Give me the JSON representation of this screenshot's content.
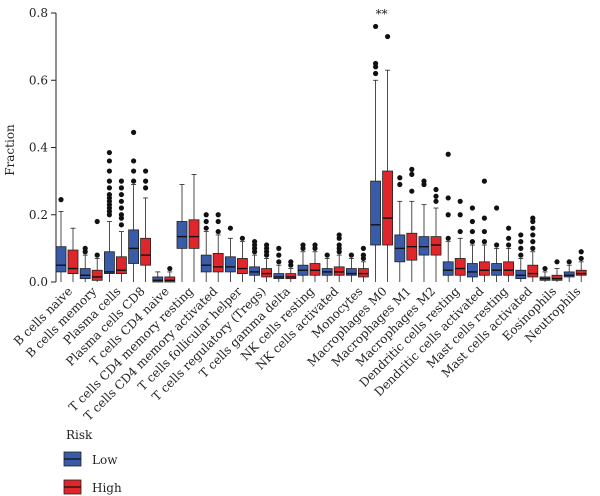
{
  "chart_data": {
    "type": "boxplot",
    "ylabel": "Fraction",
    "ylim": [
      0,
      0.8
    ],
    "yticks": [
      "0.0",
      "0.2",
      "0.4",
      "0.6",
      "0.8"
    ],
    "categories": [
      "B cells naive",
      "B cells memory",
      "Plasma cells",
      "Plasma cells CD8",
      "T cells CD4 naive",
      "T cells CD4 memory resting",
      "T cells CD4 memory activated",
      "T cells follicular helper",
      "T cells regulatory (Tregs)",
      "T cells gamma delta",
      "NK cells resting",
      "NK cells activated",
      "Monocytes",
      "Macrophages M0",
      "Macrophages M1",
      "Macrophages M2",
      "Dendritic cells resting",
      "Dendritic cells activated",
      "Mast cells resting",
      "Mast cells activated",
      "Eosinophils",
      "Neutrophils"
    ],
    "legend": {
      "title": "Risk",
      "position": "bottom-left"
    },
    "significance": [
      {
        "category": "Macrophages M0",
        "label": "**"
      }
    ],
    "series": [
      {
        "name": "Low",
        "color": "#3a5ba8",
        "boxes": [
          {
            "whislo": 0.0,
            "q1": 0.03,
            "med": 0.05,
            "q3": 0.105,
            "whishi": 0.21,
            "fliers": [
              0.245
            ]
          },
          {
            "whislo": 0.0,
            "q1": 0.01,
            "med": 0.02,
            "q3": 0.04,
            "whishi": 0.08,
            "fliers": [
              0.09,
              0.1
            ]
          },
          {
            "whislo": 0.0,
            "q1": 0.025,
            "med": 0.03,
            "q3": 0.09,
            "whishi": 0.18,
            "fliers": [
              0.2,
              0.21,
              0.22,
              0.23,
              0.24,
              0.25,
              0.26,
              0.28,
              0.3,
              0.33,
              0.36,
              0.385
            ]
          },
          {
            "whislo": 0.0,
            "q1": 0.055,
            "med": 0.1,
            "q3": 0.155,
            "whishi": 0.29,
            "fliers": [
              0.3,
              0.33,
              0.36,
              0.445
            ]
          },
          {
            "whislo": 0.0,
            "q1": 0.0,
            "med": 0.005,
            "q3": 0.015,
            "whishi": 0.03,
            "fliers": []
          },
          {
            "whislo": 0.0,
            "q1": 0.1,
            "med": 0.135,
            "q3": 0.18,
            "whishi": 0.29,
            "fliers": []
          },
          {
            "whislo": 0.0,
            "q1": 0.03,
            "med": 0.05,
            "q3": 0.08,
            "whishi": 0.15,
            "fliers": [
              0.16,
              0.18,
              0.2
            ]
          },
          {
            "whislo": 0.0,
            "q1": 0.03,
            "med": 0.045,
            "q3": 0.075,
            "whishi": 0.13,
            "fliers": [
              0.16
            ]
          },
          {
            "whislo": 0.0,
            "q1": 0.02,
            "med": 0.03,
            "q3": 0.045,
            "whishi": 0.08,
            "fliers": [
              0.09,
              0.1,
              0.11,
              0.12
            ]
          },
          {
            "whislo": 0.0,
            "q1": 0.01,
            "med": 0.015,
            "q3": 0.025,
            "whishi": 0.05,
            "fliers": [
              0.06,
              0.08,
              0.1
            ]
          },
          {
            "whislo": 0.0,
            "q1": 0.02,
            "med": 0.035,
            "q3": 0.05,
            "whishi": 0.09,
            "fliers": [
              0.1,
              0.11
            ]
          },
          {
            "whislo": 0.0,
            "q1": 0.02,
            "med": 0.03,
            "q3": 0.04,
            "whishi": 0.07,
            "fliers": [
              0.08
            ]
          },
          {
            "whislo": 0.0,
            "q1": 0.02,
            "med": 0.025,
            "q3": 0.04,
            "whishi": 0.07,
            "fliers": [
              0.08
            ]
          },
          {
            "whislo": 0.0,
            "q1": 0.11,
            "med": 0.17,
            "q3": 0.3,
            "whishi": 0.6,
            "fliers": [
              0.62,
              0.64,
              0.65,
              0.76
            ]
          },
          {
            "whislo": 0.0,
            "q1": 0.06,
            "med": 0.1,
            "q3": 0.14,
            "whishi": 0.24,
            "fliers": [
              0.29,
              0.31
            ]
          },
          {
            "whislo": 0.0,
            "q1": 0.08,
            "med": 0.105,
            "q3": 0.135,
            "whishi": 0.23,
            "fliers": [
              0.29,
              0.3
            ]
          },
          {
            "whislo": 0.0,
            "q1": 0.02,
            "med": 0.035,
            "q3": 0.06,
            "whishi": 0.12,
            "fliers": [
              0.13,
              0.2,
              0.25,
              0.38
            ]
          },
          {
            "whislo": 0.0,
            "q1": 0.015,
            "med": 0.03,
            "q3": 0.055,
            "whishi": 0.11,
            "fliers": [
              0.12,
              0.15,
              0.18,
              0.22
            ]
          },
          {
            "whislo": 0.0,
            "q1": 0.02,
            "med": 0.035,
            "q3": 0.055,
            "whishi": 0.1,
            "fliers": [
              0.11,
              0.22
            ]
          },
          {
            "whislo": 0.0,
            "q1": 0.01,
            "med": 0.02,
            "q3": 0.035,
            "whishi": 0.07,
            "fliers": [
              0.08,
              0.1,
              0.12,
              0.14
            ]
          },
          {
            "whislo": 0.0,
            "q1": 0.005,
            "med": 0.01,
            "q3": 0.015,
            "whishi": 0.03,
            "fliers": [
              0.04
            ]
          },
          {
            "whislo": 0.0,
            "q1": 0.015,
            "med": 0.02,
            "q3": 0.03,
            "whishi": 0.05,
            "fliers": [
              0.06
            ]
          }
        ]
      },
      {
        "name": "High",
        "color": "#e0262b",
        "boxes": [
          {
            "whislo": 0.0,
            "q1": 0.025,
            "med": 0.04,
            "q3": 0.095,
            "whishi": 0.16,
            "fliers": []
          },
          {
            "whislo": 0.0,
            "q1": 0.005,
            "med": 0.015,
            "q3": 0.035,
            "whishi": 0.07,
            "fliers": [
              0.08,
              0.18
            ]
          },
          {
            "whislo": 0.0,
            "q1": 0.025,
            "med": 0.035,
            "q3": 0.075,
            "whishi": 0.15,
            "fliers": [
              0.17,
              0.19,
              0.2,
              0.22,
              0.24,
              0.26,
              0.28,
              0.3
            ]
          },
          {
            "whislo": 0.0,
            "q1": 0.05,
            "med": 0.08,
            "q3": 0.13,
            "whishi": 0.25,
            "fliers": [
              0.28,
              0.3,
              0.33
            ]
          },
          {
            "whislo": 0.0,
            "q1": 0.0,
            "med": 0.005,
            "q3": 0.015,
            "whishi": 0.03,
            "fliers": [
              0.04
            ]
          },
          {
            "whislo": 0.0,
            "q1": 0.1,
            "med": 0.135,
            "q3": 0.185,
            "whishi": 0.32,
            "fliers": []
          },
          {
            "whislo": 0.0,
            "q1": 0.03,
            "med": 0.045,
            "q3": 0.085,
            "whishi": 0.14,
            "fliers": [
              0.15,
              0.18,
              0.2
            ]
          },
          {
            "whislo": 0.0,
            "q1": 0.025,
            "med": 0.04,
            "q3": 0.07,
            "whishi": 0.12,
            "fliers": [
              0.13
            ]
          },
          {
            "whislo": 0.0,
            "q1": 0.015,
            "med": 0.025,
            "q3": 0.04,
            "whishi": 0.07,
            "fliers": [
              0.08,
              0.09,
              0.1,
              0.11
            ]
          },
          {
            "whislo": 0.0,
            "q1": 0.01,
            "med": 0.015,
            "q3": 0.025,
            "whishi": 0.04,
            "fliers": [
              0.05,
              0.06
            ]
          },
          {
            "whislo": 0.0,
            "q1": 0.02,
            "med": 0.035,
            "q3": 0.055,
            "whishi": 0.09,
            "fliers": [
              0.1,
              0.11
            ]
          },
          {
            "whislo": 0.0,
            "q1": 0.02,
            "med": 0.03,
            "q3": 0.045,
            "whishi": 0.08,
            "fliers": [
              0.09,
              0.1,
              0.11,
              0.13,
              0.14
            ]
          },
          {
            "whislo": 0.0,
            "q1": 0.015,
            "med": 0.025,
            "q3": 0.04,
            "whishi": 0.06,
            "fliers": [
              0.07,
              0.08,
              0.1
            ]
          },
          {
            "whislo": 0.0,
            "q1": 0.11,
            "med": 0.19,
            "q3": 0.33,
            "whishi": 0.63,
            "fliers": [
              0.73
            ]
          },
          {
            "whislo": 0.0,
            "q1": 0.065,
            "med": 0.105,
            "q3": 0.145,
            "whishi": 0.24,
            "fliers": [
              0.27,
              0.32,
              0.335
            ]
          },
          {
            "whislo": 0.0,
            "q1": 0.08,
            "med": 0.11,
            "q3": 0.135,
            "whishi": 0.22,
            "fliers": [
              0.24,
              0.255,
              0.275
            ]
          },
          {
            "whislo": 0.0,
            "q1": 0.02,
            "med": 0.04,
            "q3": 0.07,
            "whishi": 0.13,
            "fliers": [
              0.15,
              0.2,
              0.24
            ]
          },
          {
            "whislo": 0.0,
            "q1": 0.02,
            "med": 0.035,
            "q3": 0.06,
            "whishi": 0.11,
            "fliers": [
              0.12,
              0.15,
              0.19,
              0.3
            ]
          },
          {
            "whislo": 0.0,
            "q1": 0.02,
            "med": 0.035,
            "q3": 0.06,
            "whishi": 0.1,
            "fliers": [
              0.11,
              0.13,
              0.16
            ]
          },
          {
            "whislo": 0.0,
            "q1": 0.015,
            "med": 0.025,
            "q3": 0.05,
            "whishi": 0.09,
            "fliers": [
              0.1,
              0.12,
              0.14,
              0.16,
              0.18,
              0.19
            ]
          },
          {
            "whislo": 0.0,
            "q1": 0.005,
            "med": 0.01,
            "q3": 0.02,
            "whishi": 0.04,
            "fliers": [
              0.06
            ]
          },
          {
            "whislo": 0.0,
            "q1": 0.02,
            "med": 0.025,
            "q3": 0.035,
            "whishi": 0.06,
            "fliers": [
              0.07,
              0.09
            ]
          }
        ]
      }
    ]
  }
}
